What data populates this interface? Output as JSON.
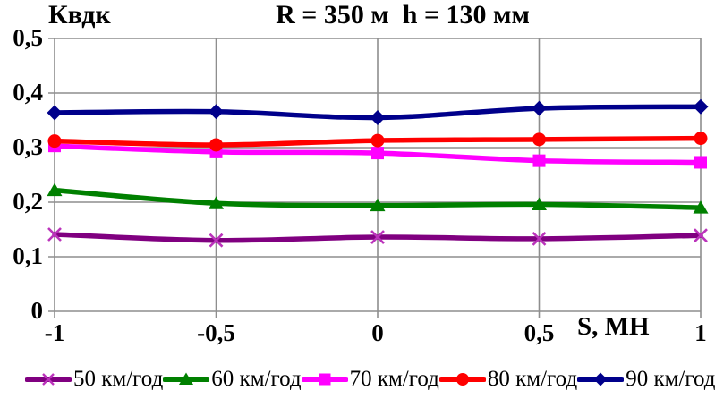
{
  "chart_data": {
    "type": "line",
    "title": "R = 350 м  h = 130 мм",
    "ylabel": "Квдк",
    "xlabel": "S, МН",
    "xlim": [
      -1,
      1
    ],
    "ylim": [
      0,
      0.5
    ],
    "xticks": [
      -1,
      -0.5,
      0,
      0.5,
      1
    ],
    "yticks": [
      0,
      0.1,
      0.2,
      0.3,
      0.4,
      0.5
    ],
    "xtick_labels": [
      "-1",
      "-0,5",
      "0",
      "0,5",
      "1"
    ],
    "ytick_labels": [
      "0",
      "0,1",
      "0,2",
      "0,3",
      "0,4",
      "0,5"
    ],
    "grid": true,
    "grid_color": "#8e8e8e",
    "legend_position": "bottom",
    "x": [
      -1,
      -0.5,
      0,
      0.5,
      1
    ],
    "series": [
      {
        "name": "50 км/год",
        "color": "#800080",
        "marker": "x",
        "marker_color": "#BB33BB",
        "values": [
          0.141,
          0.13,
          0.136,
          0.133,
          0.139
        ]
      },
      {
        "name": "60 км/год",
        "color": "#008000",
        "marker": "triangle",
        "values": [
          0.222,
          0.198,
          0.194,
          0.196,
          0.19
        ]
      },
      {
        "name": "70 км/год",
        "color": "#FF00FF",
        "marker": "square",
        "values": [
          0.303,
          0.292,
          0.29,
          0.276,
          0.273
        ]
      },
      {
        "name": "80 км/год",
        "color": "#FF0000",
        "marker": "circle",
        "values": [
          0.312,
          0.305,
          0.313,
          0.315,
          0.317
        ]
      },
      {
        "name": "90 км/год",
        "color": "#00008B",
        "marker": "diamond",
        "values": [
          0.364,
          0.366,
          0.355,
          0.372,
          0.375
        ]
      }
    ]
  }
}
